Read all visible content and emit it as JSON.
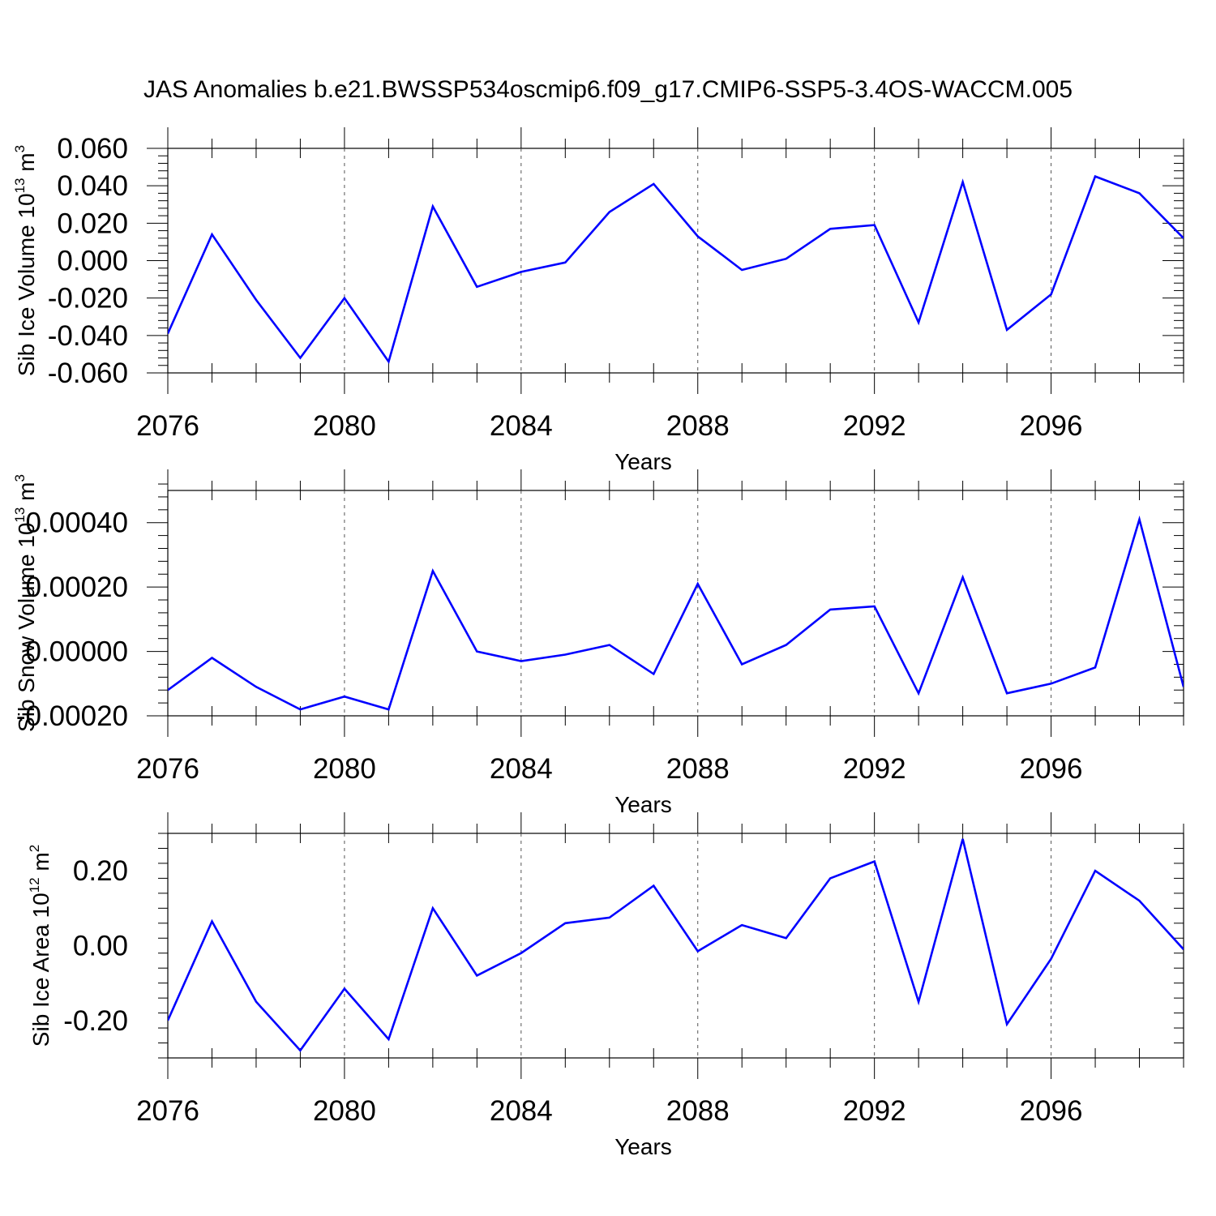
{
  "chart_data": {
    "title": "JAS Anomalies b.e21.BWSSP534oscmip6.f09_g17.CMIP6-SSP5-3.4OS-WACCM.005",
    "type": "line",
    "series_color": "#0000ff",
    "panels": [
      {
        "type": "line",
        "ylabel_main": "Sib Ice Volume 10",
        "ylabel_exp": "13",
        "ylabel_unit": " m",
        "ylabel_unit_exp": "3",
        "xlabel": "Years",
        "xlim": [
          2076,
          2099
        ],
        "ylim": [
          -0.06,
          0.06
        ],
        "xticks": [
          2076,
          2080,
          2084,
          2088,
          2092,
          2096
        ],
        "xtick_labels": [
          "2076",
          "2080",
          "2084",
          "2088",
          "2092",
          "2096"
        ],
        "yticks": [
          -0.06,
          -0.04,
          -0.02,
          0.0,
          0.02,
          0.04,
          0.06
        ],
        "ytick_labels": [
          "-0.060",
          "-0.040",
          "-0.020",
          "0.000",
          "0.020",
          "0.040",
          "0.060"
        ],
        "x": [
          2076,
          2077,
          2078,
          2079,
          2080,
          2081,
          2082,
          2083,
          2084,
          2085,
          2086,
          2087,
          2088,
          2089,
          2090,
          2091,
          2092,
          2093,
          2094,
          2095,
          2096,
          2097,
          2098,
          2099
        ],
        "values": [
          -0.039,
          0.014,
          -0.021,
          -0.052,
          -0.02,
          -0.054,
          0.029,
          -0.014,
          -0.006,
          -0.001,
          0.026,
          0.041,
          0.013,
          -0.005,
          0.001,
          0.017,
          0.019,
          -0.033,
          0.042,
          -0.037,
          -0.018,
          0.045,
          0.036,
          0.012
        ]
      },
      {
        "type": "line",
        "ylabel_main": "Sib Snow Volume 10",
        "ylabel_exp": "13",
        "ylabel_unit": " m",
        "ylabel_unit_exp": "3",
        "xlabel": "Years",
        "xlim": [
          2076,
          2099
        ],
        "ylim": [
          -0.0002,
          0.0005
        ],
        "xticks": [
          2076,
          2080,
          2084,
          2088,
          2092,
          2096
        ],
        "xtick_labels": [
          "2076",
          "2080",
          "2084",
          "2088",
          "2092",
          "2096"
        ],
        "yticks": [
          -0.0002,
          0.0,
          0.0002,
          0.0004
        ],
        "ytick_labels": [
          "-0.00020",
          "0.00000",
          "0.00020",
          "0.00040"
        ],
        "x": [
          2076,
          2077,
          2078,
          2079,
          2080,
          2081,
          2082,
          2083,
          2084,
          2085,
          2086,
          2087,
          2088,
          2089,
          2090,
          2091,
          2092,
          2093,
          2094,
          2095,
          2096,
          2097,
          2098,
          2099
        ],
        "values": [
          -0.00012,
          -2e-05,
          -0.00011,
          -0.00018,
          -0.00014,
          -0.00018,
          0.00025,
          0.0,
          -3e-05,
          -1e-05,
          2e-05,
          -7e-05,
          0.00021,
          -4e-05,
          2e-05,
          0.00013,
          0.00014,
          -0.00013,
          0.00023,
          -0.00013,
          -0.0001,
          -5e-05,
          0.00041,
          -0.00011
        ]
      },
      {
        "type": "line",
        "ylabel_main": "Sib Ice Area 10",
        "ylabel_exp": "12",
        "ylabel_unit": " m",
        "ylabel_unit_exp": "2",
        "xlabel": "Years",
        "xlim": [
          2076,
          2099
        ],
        "ylim": [
          -0.3,
          0.3
        ],
        "xticks": [
          2076,
          2080,
          2084,
          2088,
          2092,
          2096
        ],
        "xtick_labels": [
          "2076",
          "2080",
          "2084",
          "2088",
          "2092",
          "2096"
        ],
        "yticks": [
          -0.2,
          0.0,
          0.2
        ],
        "ytick_labels": [
          "-0.20",
          "0.00",
          "0.20"
        ],
        "x": [
          2076,
          2077,
          2078,
          2079,
          2080,
          2081,
          2082,
          2083,
          2084,
          2085,
          2086,
          2087,
          2088,
          2089,
          2090,
          2091,
          2092,
          2093,
          2094,
          2095,
          2096,
          2097,
          2098,
          2099
        ],
        "values": [
          -0.2,
          0.065,
          -0.15,
          -0.28,
          -0.115,
          -0.25,
          0.1,
          -0.08,
          -0.02,
          0.06,
          0.075,
          0.16,
          -0.015,
          0.055,
          0.02,
          0.18,
          0.225,
          -0.15,
          0.285,
          -0.21,
          -0.035,
          0.2,
          0.12,
          -0.01
        ]
      }
    ]
  }
}
